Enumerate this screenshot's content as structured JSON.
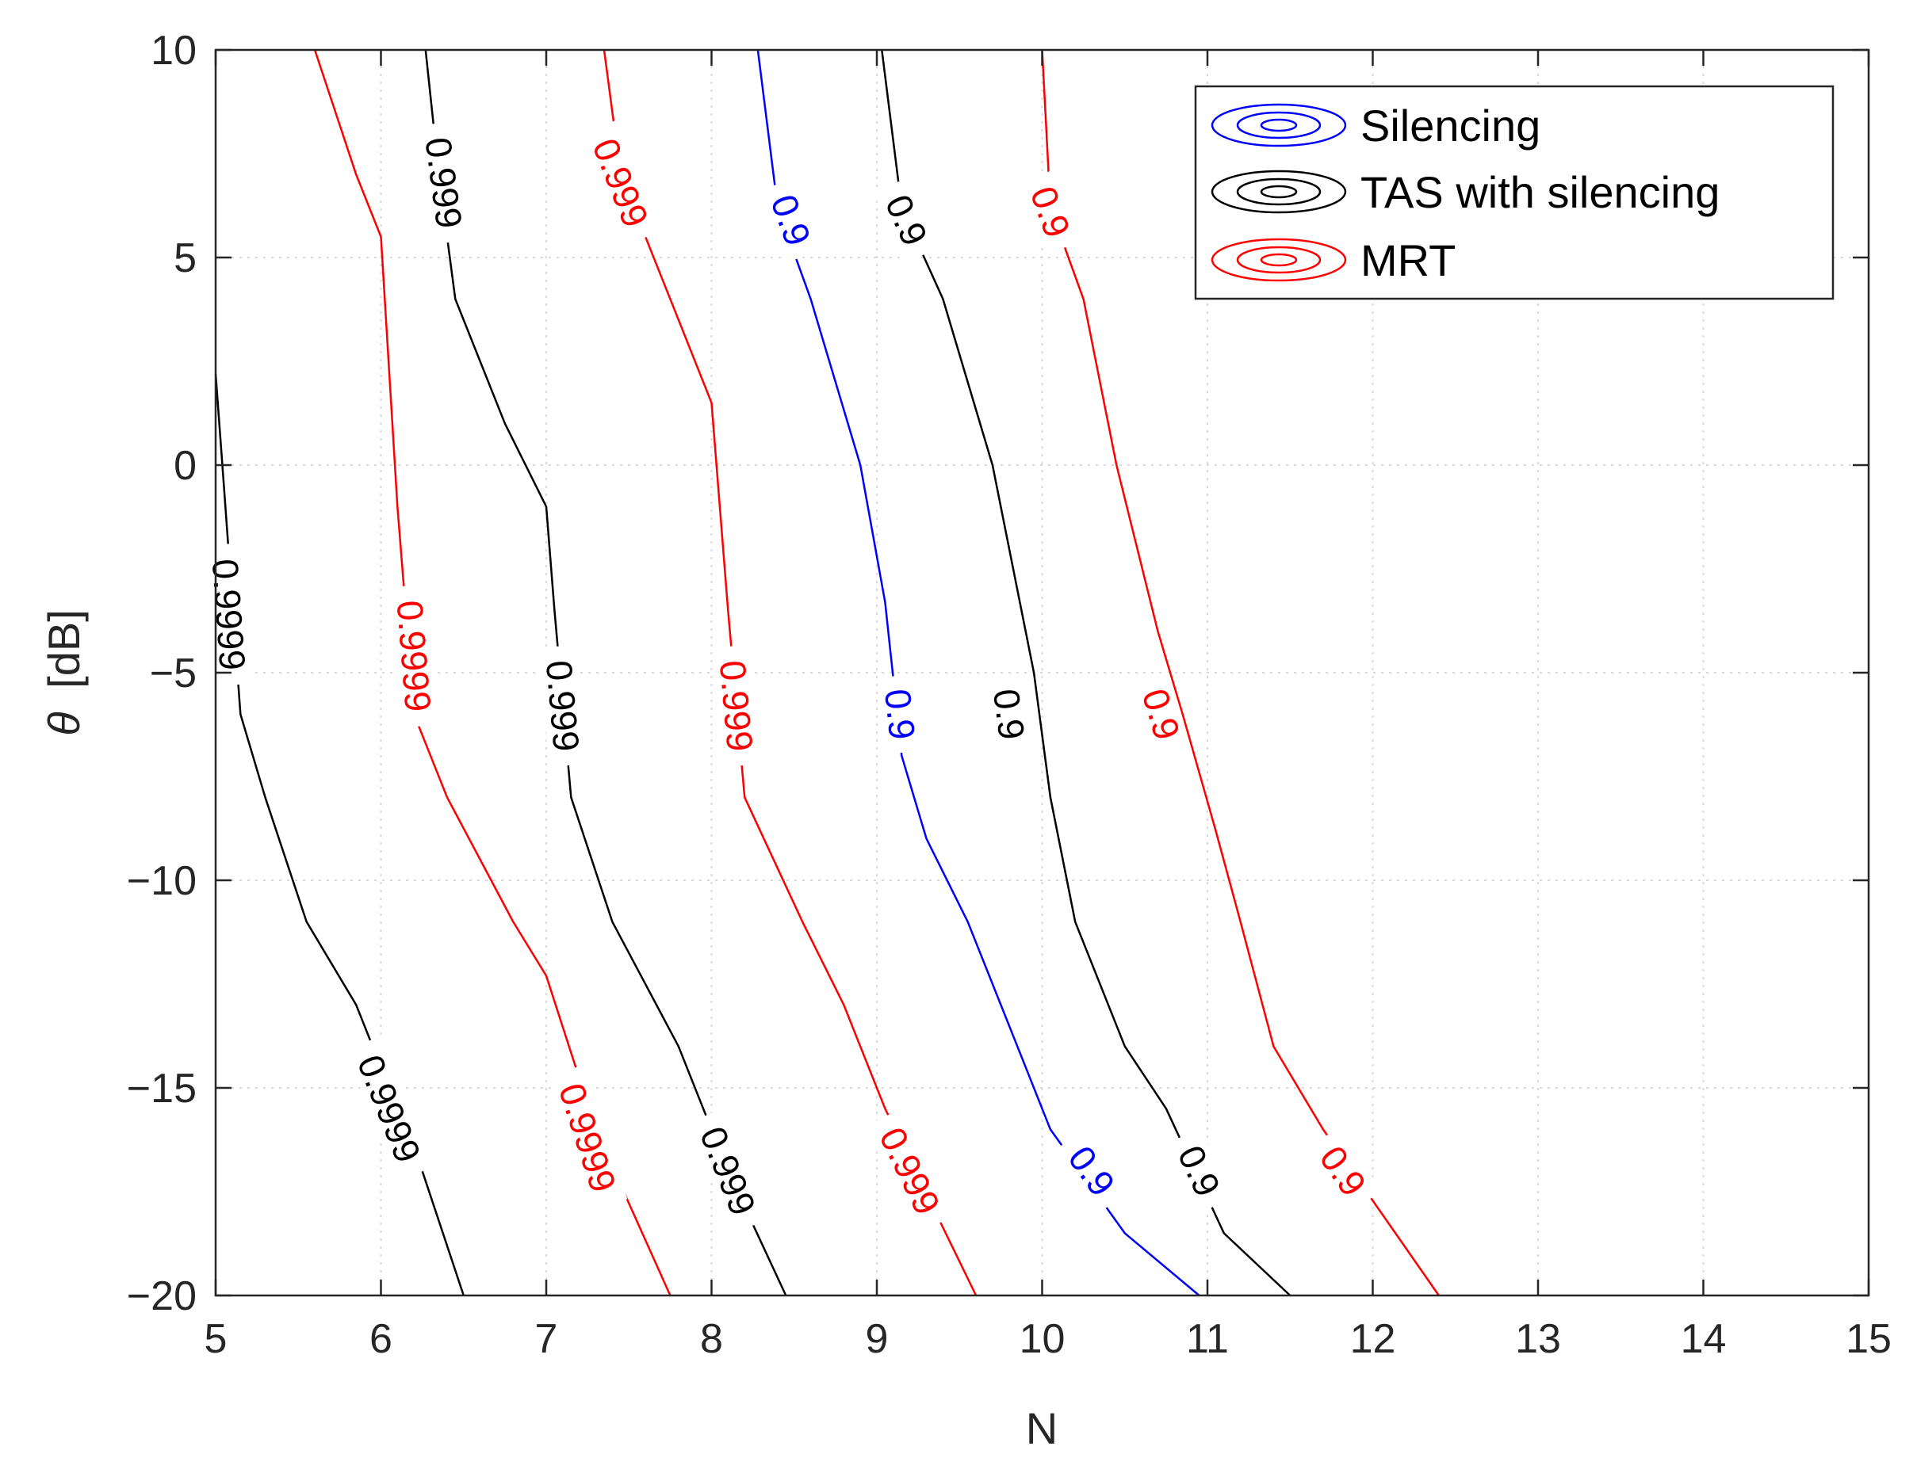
{
  "chart_data": {
    "type": "contour",
    "title": "",
    "xlabel": "N",
    "ylabel_symbol": "θ",
    "ylabel_unit": "[dB]",
    "xlim": [
      5,
      15
    ],
    "ylim": [
      -20,
      10
    ],
    "xticks": [
      5,
      6,
      7,
      8,
      9,
      10,
      11,
      12,
      13,
      14,
      15
    ],
    "yticks": [
      10,
      5,
      0,
      -5,
      -10,
      -15,
      -20
    ],
    "xtick_labels": [
      "5",
      "6",
      "7",
      "8",
      "9",
      "10",
      "11",
      "12",
      "13",
      "14",
      "15"
    ],
    "ytick_labels": [
      "10",
      "5",
      "0",
      "−5",
      "−10",
      "−15",
      "−20"
    ],
    "grid": true,
    "legend_position": "top-right",
    "legend": [
      {
        "label": "Silencing",
        "color": "#0000ff"
      },
      {
        "label": "TAS with silencing",
        "color": "#000000"
      },
      {
        "label": "MRT",
        "color": "#ff0000"
      }
    ],
    "series": [
      {
        "name": "Silencing",
        "level": "0.9",
        "color": "#0000ff",
        "points": [
          [
            8.28,
            10
          ],
          [
            8.4,
            6.2
          ],
          [
            8.6,
            4
          ],
          [
            8.9,
            0
          ],
          [
            9.05,
            -3.3
          ],
          [
            9.15,
            -7
          ],
          [
            9.3,
            -9
          ],
          [
            9.55,
            -11
          ],
          [
            9.9,
            -14.5
          ],
          [
            10.05,
            -16
          ],
          [
            10.5,
            -18.5
          ],
          [
            10.95,
            -20
          ]
        ],
        "labels": [
          {
            "text": "0.9",
            "x": 8.48,
            "y": 5.9
          },
          {
            "text": "0.9",
            "x": 9.14,
            "y": -6.0
          },
          {
            "text": "0.9",
            "x": 10.3,
            "y": -17.0
          }
        ]
      },
      {
        "name": "TAS with silencing",
        "level": "0.9",
        "color": "#000000",
        "points": [
          [
            9.03,
            10
          ],
          [
            9.15,
            6.2
          ],
          [
            9.4,
            4
          ],
          [
            9.7,
            0
          ],
          [
            9.95,
            -5
          ],
          [
            10.05,
            -8
          ],
          [
            10.2,
            -11
          ],
          [
            10.5,
            -14
          ],
          [
            10.75,
            -15.5
          ],
          [
            11.1,
            -18.5
          ],
          [
            11.5,
            -20
          ]
        ],
        "labels": [
          {
            "text": "0.9",
            "x": 9.18,
            "y": 5.9
          },
          {
            "text": "0.9",
            "x": 9.8,
            "y": -6.0
          },
          {
            "text": "0.9",
            "x": 10.95,
            "y": -17.0
          }
        ]
      },
      {
        "name": "MRT",
        "level": "0.9",
        "color": "#ff0000",
        "points": [
          [
            10.0,
            10
          ],
          [
            10.05,
            6.2
          ],
          [
            10.25,
            4
          ],
          [
            10.45,
            0
          ],
          [
            10.7,
            -4
          ],
          [
            10.85,
            -6
          ],
          [
            11.05,
            -8.8
          ],
          [
            11.2,
            -11
          ],
          [
            11.4,
            -14
          ],
          [
            11.7,
            -16
          ],
          [
            12.4,
            -20
          ]
        ],
        "labels": [
          {
            "text": "0.9",
            "x": 10.05,
            "y": 6.1
          },
          {
            "text": "0.9",
            "x": 10.72,
            "y": -6.0
          },
          {
            "text": "0.9",
            "x": 11.82,
            "y": -17.0
          }
        ]
      },
      {
        "name": "TAS with silencing",
        "level": "0.999",
        "color": "#000000",
        "points": [
          [
            6.27,
            10
          ],
          [
            6.35,
            7
          ],
          [
            6.45,
            4
          ],
          [
            6.75,
            1
          ],
          [
            7.0,
            -1
          ],
          [
            7.05,
            -3.5
          ],
          [
            7.15,
            -8
          ],
          [
            7.4,
            -11
          ],
          [
            7.8,
            -14
          ],
          [
            8.1,
            -17
          ],
          [
            8.45,
            -20
          ]
        ],
        "labels": [
          {
            "text": "0.999",
            "x": 6.38,
            "y": 6.8
          },
          {
            "text": "0.999",
            "x": 7.1,
            "y": -5.8
          },
          {
            "text": "0.999",
            "x": 8.1,
            "y": -17.0
          }
        ]
      },
      {
        "name": "MRT",
        "level": "0.999",
        "color": "#ff0000",
        "points": [
          [
            7.35,
            10
          ],
          [
            7.45,
            7
          ],
          [
            7.75,
            4
          ],
          [
            8.0,
            1.5
          ],
          [
            8.1,
            -3.5
          ],
          [
            8.2,
            -8
          ],
          [
            8.55,
            -11
          ],
          [
            8.8,
            -13
          ],
          [
            9.05,
            -15.5
          ],
          [
            9.6,
            -20
          ]
        ],
        "labels": [
          {
            "text": "0.999",
            "x": 7.45,
            "y": 6.8
          },
          {
            "text": "0.999",
            "x": 8.15,
            "y": -5.8
          },
          {
            "text": "0.999",
            "x": 9.2,
            "y": -17.0
          }
        ]
      },
      {
        "name": "TAS with silencing",
        "level": "0.9999",
        "color": "#000000",
        "points": [
          [
            5.0,
            2.2
          ],
          [
            5.05,
            -0.5
          ],
          [
            5.15,
            -6
          ],
          [
            5.3,
            -8
          ],
          [
            5.55,
            -11
          ],
          [
            5.85,
            -13
          ],
          [
            6.25,
            -17
          ],
          [
            6.5,
            -20
          ]
        ],
        "labels": [
          {
            "text": "0.9999",
            "x": 5.08,
            "y": -3.6
          },
          {
            "text": "0.9999",
            "x": 6.05,
            "y": -15.5
          }
        ]
      },
      {
        "name": "MRT",
        "level": "0.9999",
        "color": "#ff0000",
        "points": [
          [
            5.6,
            10
          ],
          [
            5.85,
            7
          ],
          [
            6.0,
            5.5
          ],
          [
            6.1,
            -1
          ],
          [
            6.2,
            -6
          ],
          [
            6.4,
            -8
          ],
          [
            6.8,
            -11
          ],
          [
            7.0,
            -12.3
          ],
          [
            7.3,
            -16
          ],
          [
            7.75,
            -20
          ]
        ],
        "labels": [
          {
            "text": "0.9999",
            "x": 6.2,
            "y": -4.6
          },
          {
            "text": "0.9999",
            "x": 7.25,
            "y": -16.2
          }
        ]
      }
    ]
  }
}
